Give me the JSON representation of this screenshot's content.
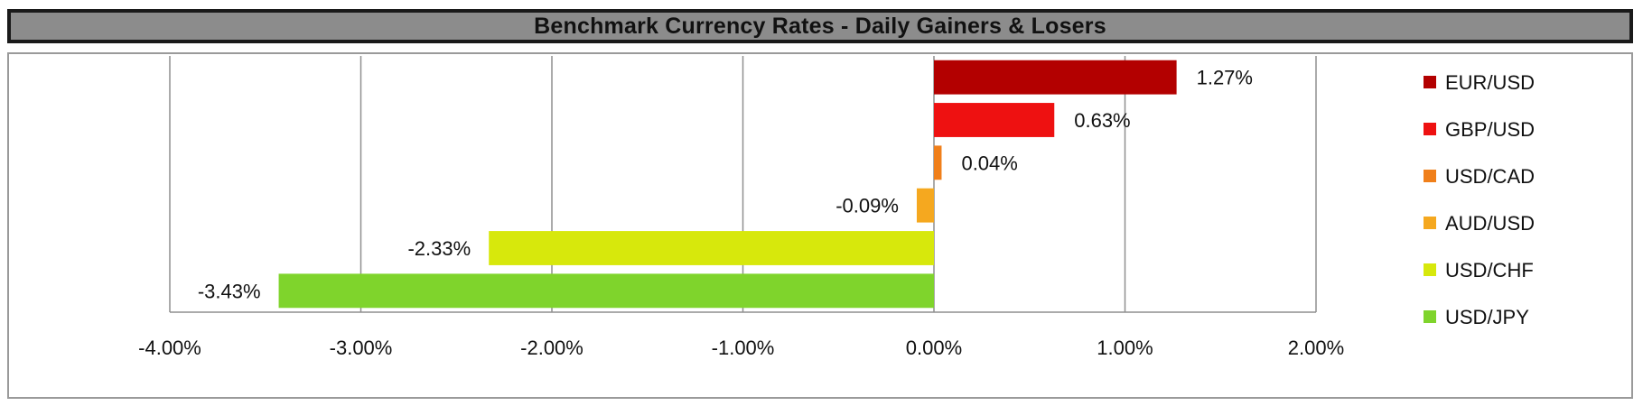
{
  "chart_data": {
    "type": "bar",
    "orientation": "horizontal",
    "title": "Benchmark Currency Rates - Daily Gainers & Losers",
    "categories": [
      "EUR/USD",
      "GBP/USD",
      "USD/CAD",
      "AUD/USD",
      "USD/CHF",
      "USD/JPY"
    ],
    "values": [
      1.27,
      0.63,
      0.04,
      -0.09,
      -2.33,
      -3.43
    ],
    "data_labels": [
      "1.27%",
      "0.63%",
      "0.04%",
      "-0.09%",
      "-2.33%",
      "-3.43%"
    ],
    "colors": [
      "#b30000",
      "#ee1111",
      "#f07f1a",
      "#f5a81f",
      "#d7e80c",
      "#7fd42c"
    ],
    "xlim": [
      -4,
      2
    ],
    "xticks": [
      -4,
      -3,
      -2,
      -1,
      0,
      1,
      2
    ],
    "xtick_labels": [
      "-4.00%",
      "-3.00%",
      "-2.00%",
      "-1.00%",
      "0.00%",
      "1.00%",
      "2.00%"
    ],
    "xlabel": "",
    "ylabel": "",
    "grid": true,
    "legend_position": "right"
  }
}
